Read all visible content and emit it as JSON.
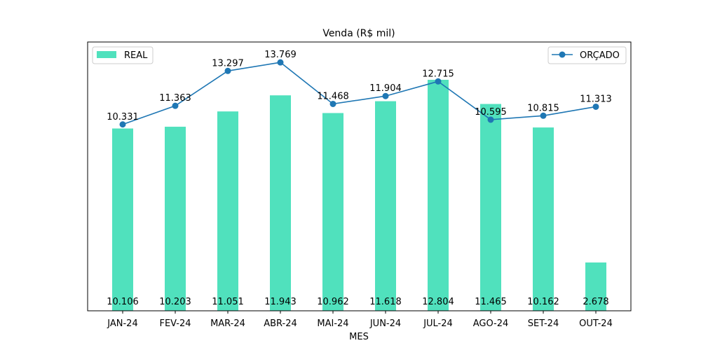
{
  "chart_data": {
    "type": "bar",
    "title": "Venda (R$ mil)",
    "xlabel": "MES",
    "ylabel": "",
    "categories": [
      "JAN-24",
      "FEV-24",
      "MAR-24",
      "ABR-24",
      "MAI-24",
      "JUN-24",
      "JUL-24",
      "AGO-24",
      "SET-24",
      "OUT-24"
    ],
    "ylim": [
      0,
      14.9
    ],
    "series": [
      {
        "name": "REAL",
        "type": "bar",
        "color": "#50e1bd",
        "values": [
          10.106,
          10.203,
          11.051,
          11.943,
          10.962,
          11.618,
          12.804,
          11.465,
          10.162,
          2.678
        ],
        "labels": [
          "10.106",
          "10.203",
          "11.051",
          "11.943",
          "10.962",
          "11.618",
          "12.804",
          "11.465",
          "10.162",
          "2.678"
        ]
      },
      {
        "name": "ORÇADO",
        "type": "line",
        "color": "#1f77b4",
        "values": [
          10.331,
          11.363,
          13.297,
          13.769,
          11.468,
          11.904,
          12.715,
          10.595,
          10.815,
          11.313
        ],
        "labels": [
          "10.331",
          "11.363",
          "13.297",
          "13.769",
          "11.468",
          "11.904",
          "12.715",
          "10.595",
          "10.815",
          "11.313"
        ]
      }
    ],
    "legend": [
      {
        "label": "REAL",
        "placement": "top-left"
      },
      {
        "label": "ORÇADO",
        "placement": "top-right"
      }
    ],
    "grid": false
  }
}
